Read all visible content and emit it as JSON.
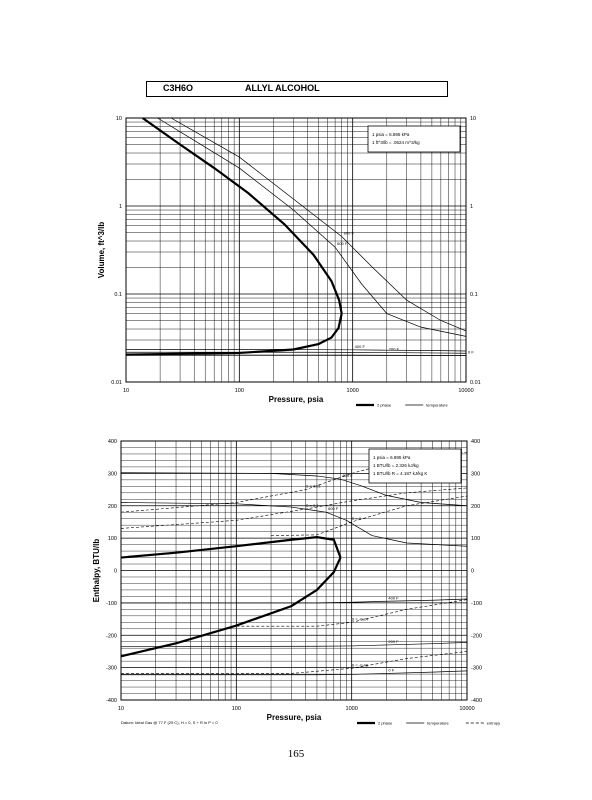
{
  "header": {
    "formula": "C3H6O",
    "compound": "ALLYL ALCOHOL"
  },
  "page_number": "165",
  "chart_data": [
    {
      "type": "line",
      "id": "volume",
      "xlabel": "Pressure,  psia",
      "ylabel": "Volume,  ft^3/lb",
      "xscale": "log",
      "yscale": "log",
      "xlim": [
        10,
        10000
      ],
      "ylim": [
        0.01,
        10
      ],
      "x_ticks": [
        "10",
        "100",
        "1000",
        "10000"
      ],
      "y_ticks": [
        "0.01",
        "0.1",
        "1",
        "10"
      ],
      "y_right_ticks": [
        "0.01",
        "0.1",
        "1",
        "10"
      ],
      "grid": true,
      "note": [
        "1 psia  =  6.895 kPa",
        "1 ft^3/lb  =  .0624 m^3/kg"
      ],
      "legend": [
        {
          "label": "2 phase",
          "style": "thick"
        },
        {
          "label": "temperature",
          "style": "thin"
        }
      ],
      "dome": {
        "vapor": {
          "x": [
            14,
            30,
            60,
            120,
            250,
            450,
            650,
            760,
            800
          ],
          "y": [
            10,
            5,
            2.7,
            1.4,
            0.62,
            0.28,
            0.14,
            0.085,
            0.06
          ]
        },
        "liquid": {
          "x": [
            10,
            100,
            300,
            500,
            650,
            750,
            800
          ],
          "y": [
            0.0205,
            0.0214,
            0.0234,
            0.027,
            0.032,
            0.041,
            0.06
          ]
        }
      },
      "isotherms": [
        {
          "label": "800 F",
          "x": [
            25,
            100,
            300,
            800,
            1500,
            3000,
            6000,
            10000
          ],
          "y": [
            10,
            3.6,
            1.2,
            0.45,
            0.2,
            0.085,
            0.05,
            0.038
          ]
        },
        {
          "label": "600 F",
          "x": [
            19,
            100,
            300,
            700,
            1200,
            2000,
            4000,
            10000
          ],
          "y": [
            10,
            2.7,
            0.9,
            0.34,
            0.13,
            0.06,
            0.042,
            0.033
          ]
        },
        {
          "label": "400 F",
          "x": [
            10,
            200,
            500,
            1000,
            2000,
            5000,
            10000
          ],
          "y": [
            0.0235,
            0.0235,
            0.0233,
            0.0232,
            0.023,
            0.0228,
            0.0225
          ]
        },
        {
          "label": "200 F",
          "x": [
            10,
            400,
            1000,
            2000,
            5000,
            10000
          ],
          "y": [
            0.0218,
            0.0218,
            0.0217,
            0.0216,
            0.0214,
            0.0212
          ]
        },
        {
          "label": "0 F",
          "x": [
            10,
            1000,
            10000
          ],
          "y": [
            0.0203,
            0.0202,
            0.02
          ]
        }
      ]
    },
    {
      "type": "line",
      "id": "enthalpy",
      "xlabel": "Pressure,  psia",
      "ylabel": "Enthalpy, BTU/lb",
      "xscale": "log",
      "yscale": "linear",
      "xlim": [
        10,
        10000
      ],
      "ylim": [
        -400,
        400
      ],
      "x_ticks": [
        "10",
        "100",
        "1000",
        "10000"
      ],
      "y_ticks": [
        "-400",
        "-300",
        "-200",
        "-100",
        "0",
        "100",
        "200",
        "300",
        "400"
      ],
      "y_right_ticks": [
        "-400",
        "-300",
        "-200",
        "-100",
        "0",
        "100",
        "200",
        "300",
        "400"
      ],
      "grid": true,
      "note": [
        "1 psia  =  6.895 kPa",
        "1 BTU/lb  =  2.326 kJ/kg",
        "1 BTU/lb R  =  4.187 kJ/kg K"
      ],
      "footnote": "Datum: Ideal Gas @ 77 F (25 C),  H = 0,  S + R ln P = 0",
      "legend": [
        {
          "label": "2 phase",
          "style": "thick"
        },
        {
          "label": "temperature",
          "style": "thin"
        },
        {
          "label": "entropy",
          "style": "dashed"
        }
      ],
      "dome": {
        "liquid": {
          "x": [
            10,
            30,
            100,
            300,
            500,
            700,
            800
          ],
          "y": [
            -265,
            -225,
            -170,
            -110,
            -60,
            -5,
            40
          ]
        },
        "vapor": {
          "x": [
            10,
            30,
            100,
            300,
            500,
            700,
            800
          ],
          "y": [
            40,
            55,
            75,
            95,
            103,
            95,
            40
          ]
        }
      },
      "isotherms": [
        {
          "label": "800 F",
          "x": [
            10,
            200,
            500,
            800,
            1200,
            2000,
            4000,
            10000
          ],
          "y": [
            302,
            300,
            292,
            282,
            262,
            232,
            210,
            200
          ]
        },
        {
          "label": "600 F",
          "x": [
            10,
            100,
            300,
            600,
            900,
            1500,
            3000,
            10000
          ],
          "y": [
            210,
            206,
            196,
            180,
            155,
            108,
            85,
            75
          ]
        },
        {
          "label": "400 F",
          "x": [
            10,
            500,
            1000,
            2000,
            5000,
            10000
          ],
          "y": [
            -100,
            -100,
            -98,
            -95,
            -92,
            -88
          ]
        },
        {
          "label": "200 F",
          "x": [
            10,
            500,
            1000,
            2000,
            5000,
            10000
          ],
          "y": [
            -235,
            -234,
            -233,
            -230,
            -226,
            -222
          ]
        },
        {
          "label": "0 F",
          "x": [
            10,
            500,
            1000,
            2000,
            5000,
            10000
          ],
          "y": [
            -322,
            -322,
            -321,
            -318,
            -314,
            -310
          ]
        }
      ],
      "isentropes": [
        {
          "label": "S = 0.21",
          "x": [
            10,
            100,
            400,
            1000,
            3000,
            10000
          ],
          "y": [
            180,
            210,
            250,
            300,
            345,
            365
          ]
        },
        {
          "label": "S = 0.1",
          "x": [
            10,
            100,
            400,
            1000,
            3000,
            10000
          ],
          "y": [
            130,
            155,
            190,
            215,
            240,
            255
          ]
        },
        {
          "label": "S = 0",
          "x": [
            200,
            500,
            1000,
            3000,
            10000
          ],
          "y": [
            108,
            110,
            150,
            200,
            230
          ]
        },
        {
          "label": "S = -0.24",
          "x": [
            100,
            500,
            1000,
            3000,
            10000
          ],
          "y": [
            -172,
            -172,
            -160,
            -120,
            -90
          ]
        },
        {
          "label": "S = -0.48",
          "x": [
            10,
            300,
            1000,
            3000,
            10000
          ],
          "y": [
            -318,
            -318,
            -302,
            -272,
            -250
          ]
        }
      ],
      "labels": {
        "isotherms": [
          {
            "text": "800 F"
          },
          {
            "text": "600 F"
          },
          {
            "text": "400 F"
          },
          {
            "text": "200 F"
          },
          {
            "text": "0 F"
          }
        ],
        "isentropes": [
          {
            "text": "S = 0.21"
          },
          {
            "text": "S = 0.1"
          },
          {
            "text": "S = 0"
          },
          {
            "text": "S = -0.24"
          },
          {
            "text": "S = -0.48"
          }
        ]
      }
    }
  ]
}
